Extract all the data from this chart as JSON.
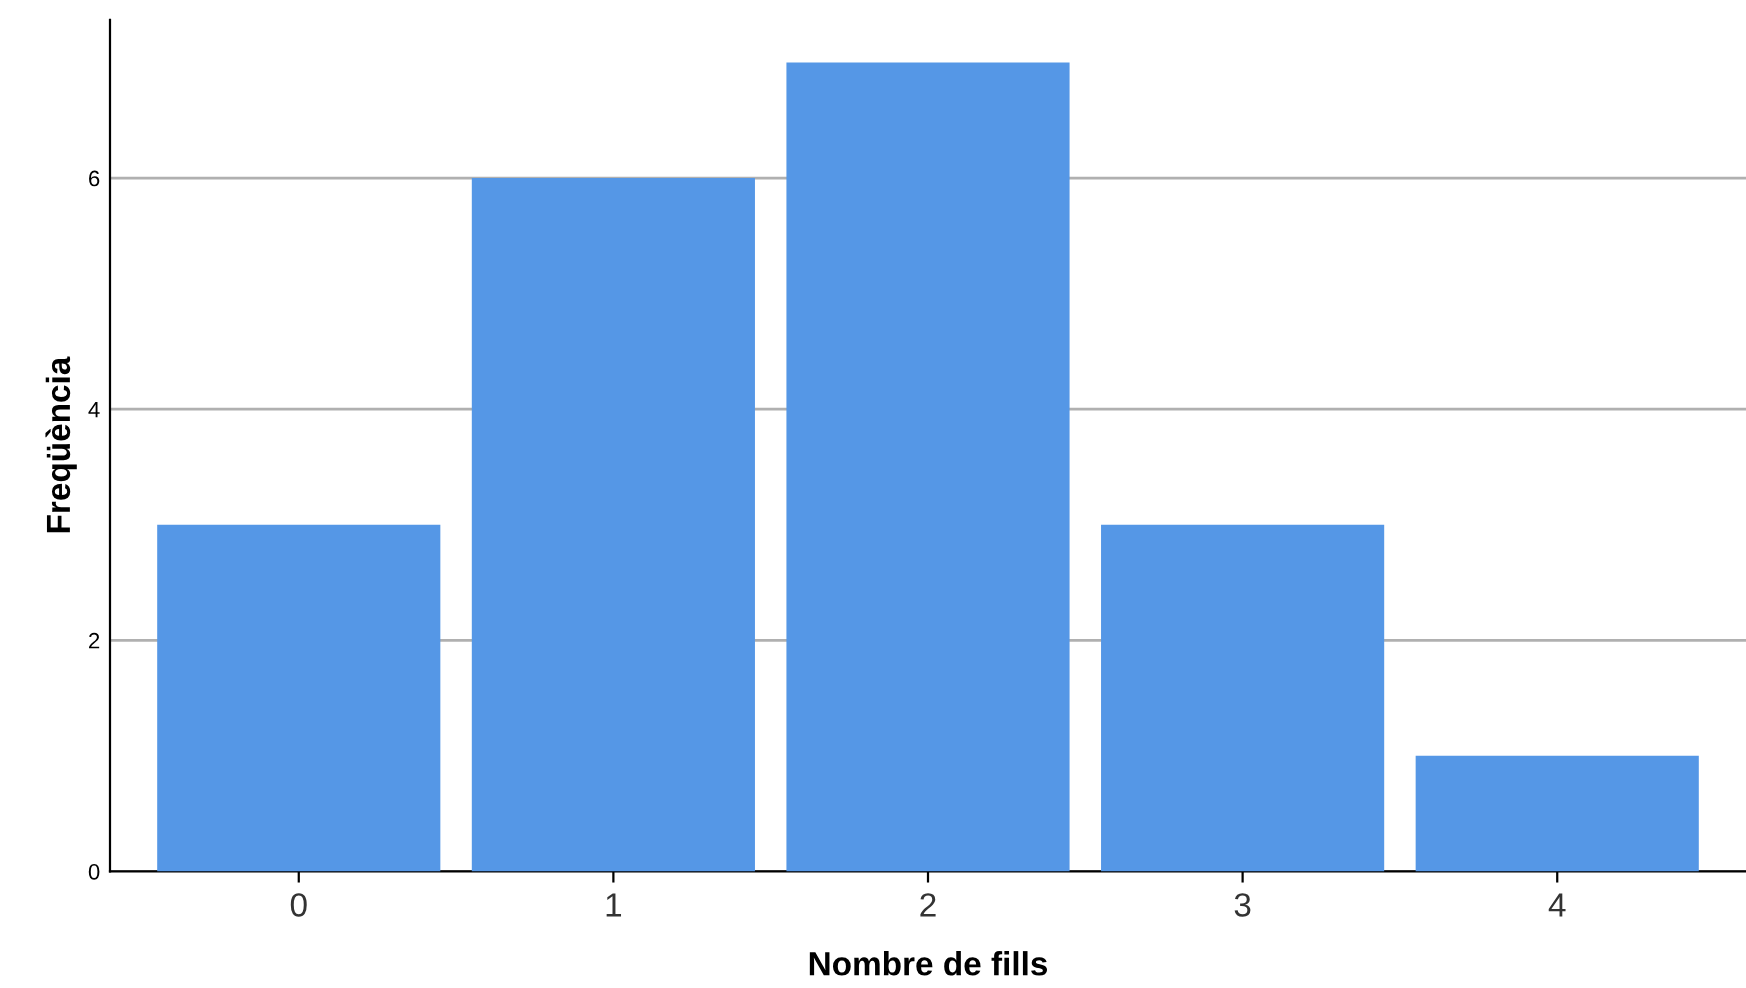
{
  "chart_data": {
    "type": "bar",
    "xlabel": "Nombre de fills",
    "ylabel": "Freqüència",
    "categories": [
      "0",
      "1",
      "2",
      "3",
      "4"
    ],
    "values": [
      3,
      6,
      7,
      3,
      1
    ],
    "color": "#5597e6",
    "ylim": [
      0,
      7.37
    ],
    "yticks": [
      0,
      2,
      4,
      6
    ],
    "grid": "y"
  }
}
